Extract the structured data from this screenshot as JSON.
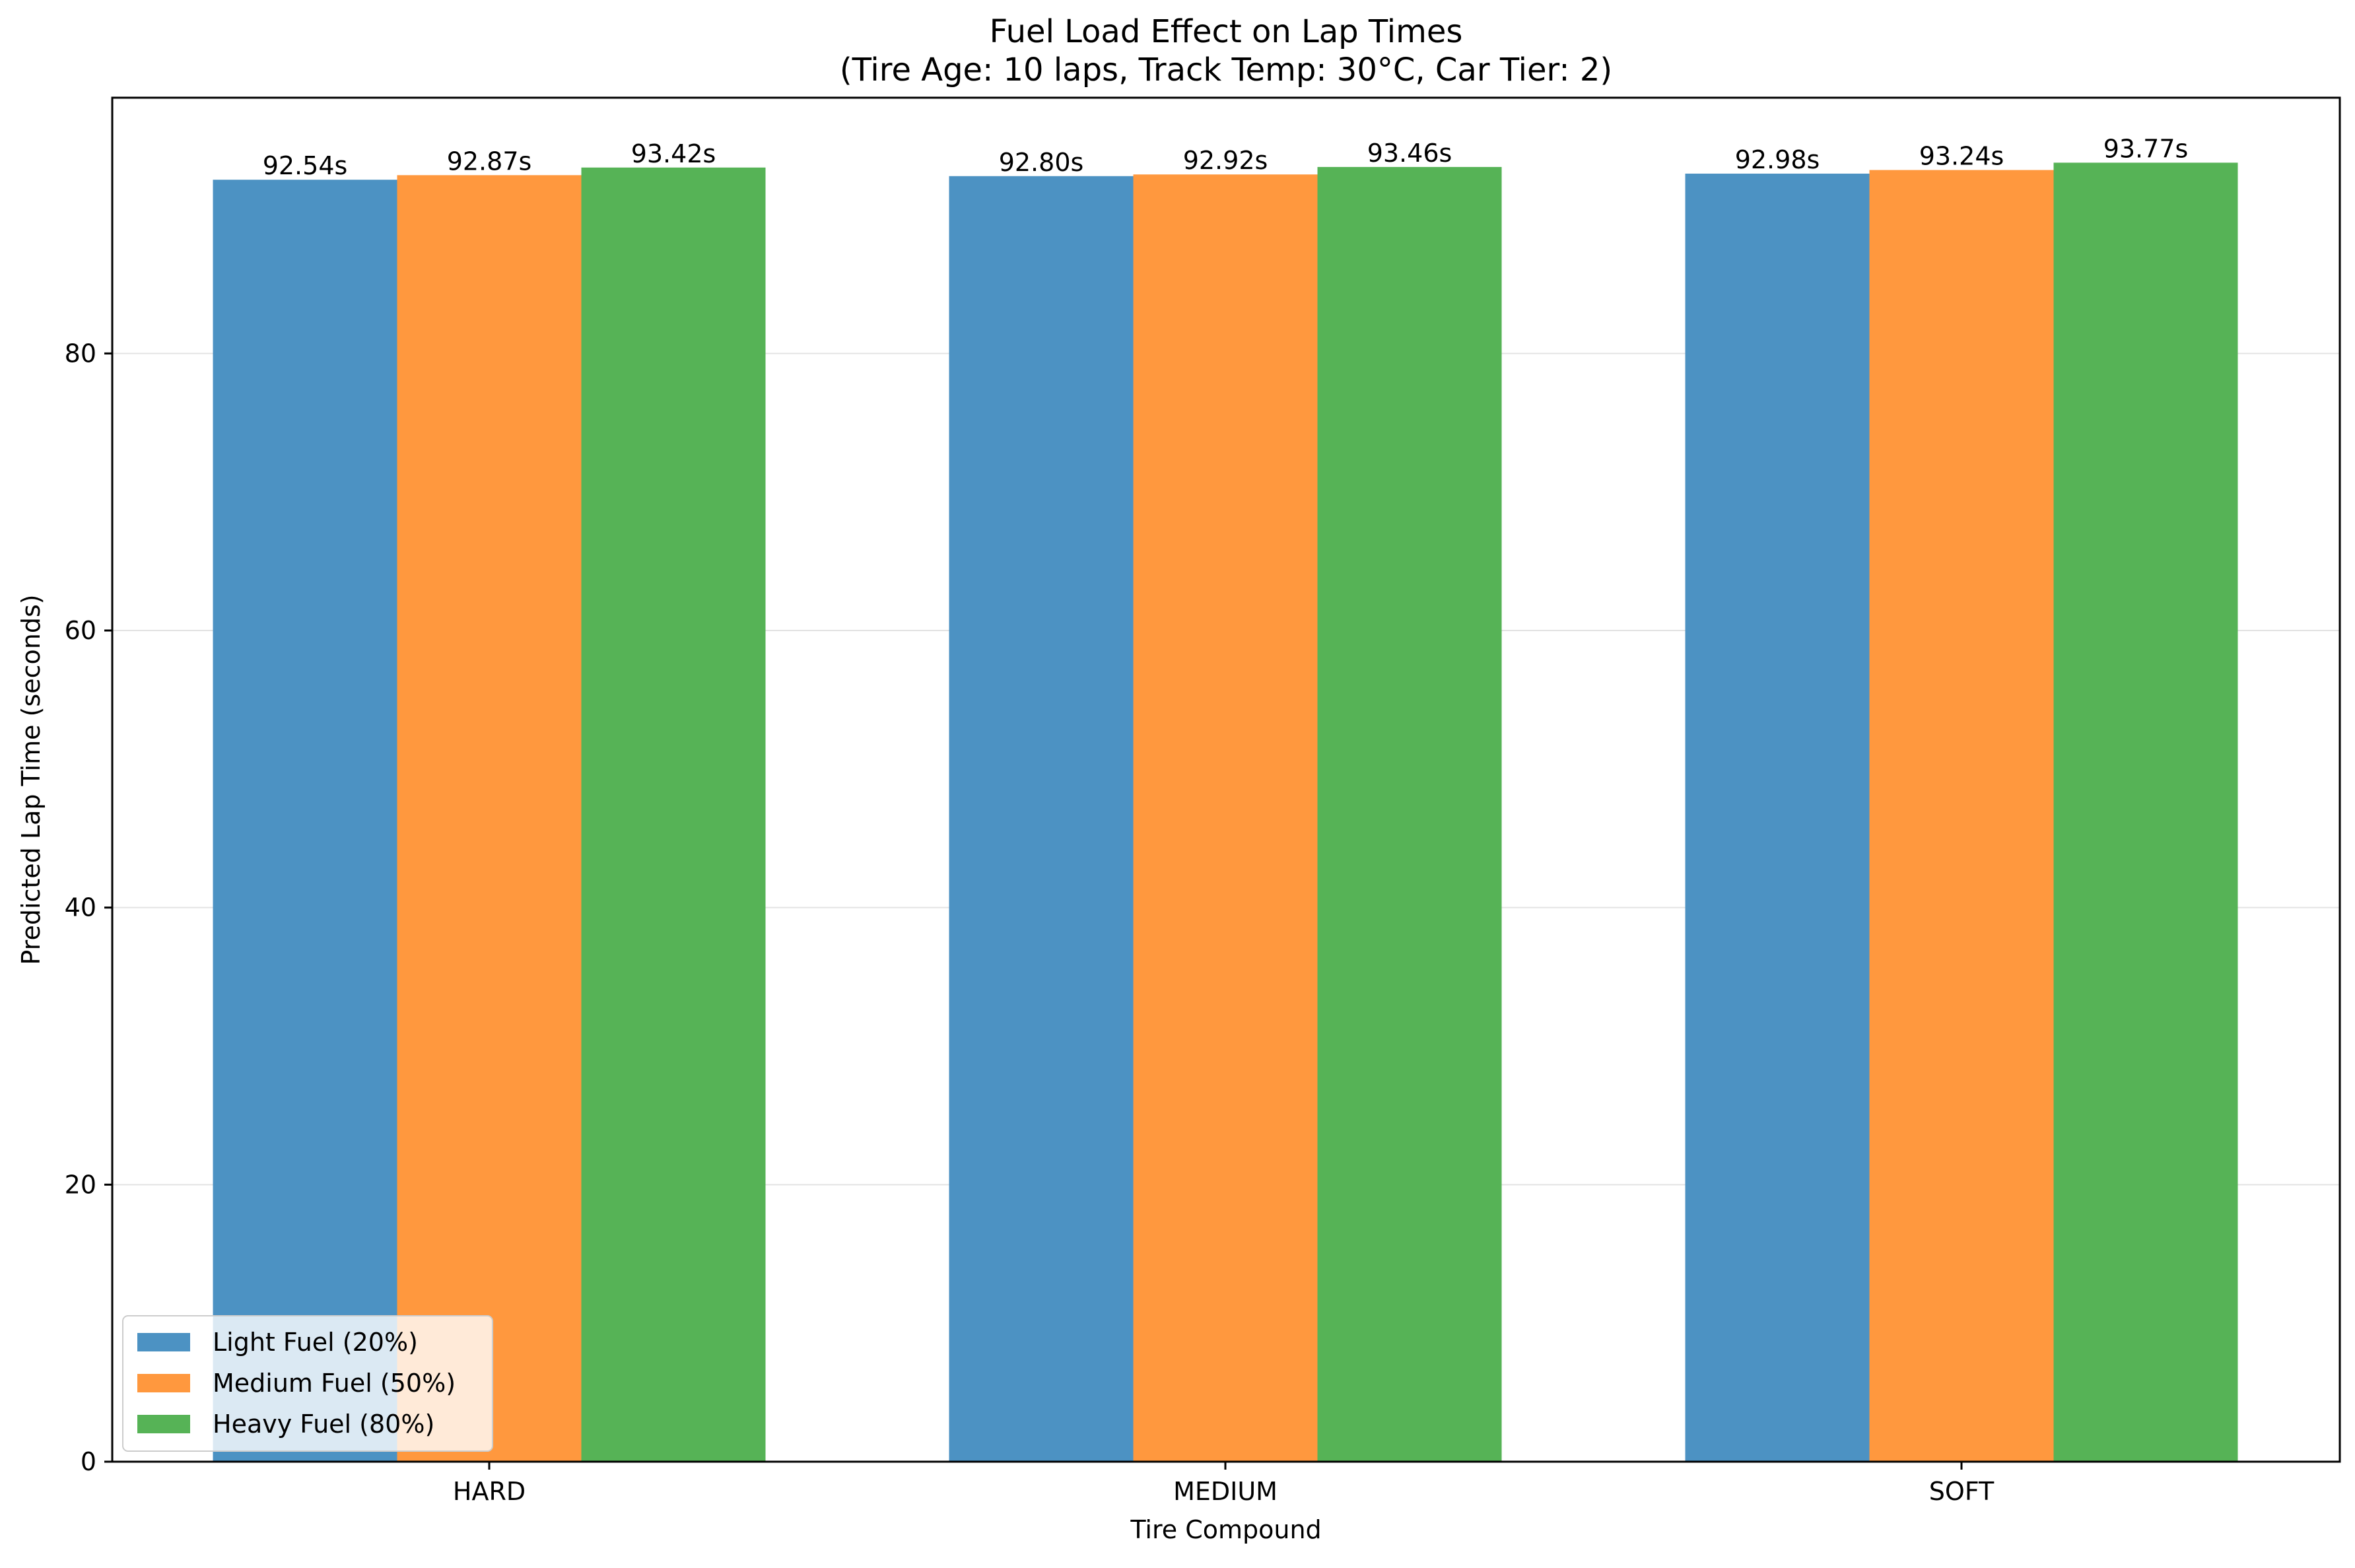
{
  "chart_data": {
    "type": "bar",
    "title": "Fuel Load Effect on Lap Times",
    "subtitle": "(Tire Age: 10 laps, Track Temp: 30°C, Car Tier: 2)",
    "xlabel": "Tire Compound",
    "ylabel": "Predicted Lap Time (seconds)",
    "categories": [
      "HARD",
      "MEDIUM",
      "SOFT"
    ],
    "series": [
      {
        "name": "Light Fuel (20%)",
        "color": "#4c92c3",
        "values": [
          92.54,
          92.8,
          92.98
        ],
        "labels": [
          "92.54s",
          "92.80s",
          "92.98s"
        ]
      },
      {
        "name": "Medium Fuel (50%)",
        "color": "#ff983e",
        "values": [
          92.87,
          92.92,
          93.24
        ],
        "labels": [
          "92.87s",
          "92.92s",
          "93.24s"
        ]
      },
      {
        "name": "Heavy Fuel (80%)",
        "color": "#56b356",
        "values": [
          93.42,
          93.46,
          93.77
        ],
        "labels": [
          "93.42s",
          "93.46s",
          "93.77s"
        ]
      }
    ],
    "ylim": [
      0,
      98.46
    ],
    "yticks": [
      0,
      20,
      40,
      60,
      80
    ],
    "ytick_labels": [
      "0",
      "20",
      "40",
      "60",
      "80"
    ],
    "grid": "y",
    "legend_position": "lower-left"
  }
}
